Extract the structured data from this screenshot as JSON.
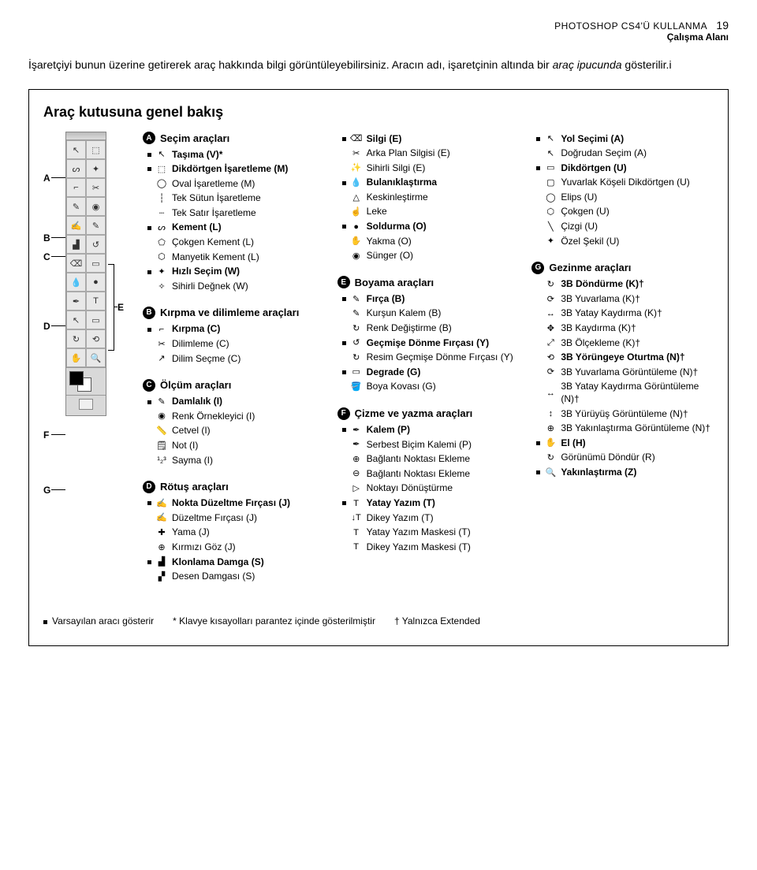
{
  "header": {
    "doc_title": "PHOTOSHOP CS4'Ü KULLANMA",
    "page_number": "19",
    "subtitle": "Çalışma Alanı"
  },
  "intro": {
    "line1_a": "İşaretçiyi bunun üzerine getirerek araç hakkında bilgi görüntüleyebilirsiniz. Aracın adı, işaretçinin altında bir ",
    "line1_ital": "araç ipucunda",
    "line1_b": " gösterilir.i"
  },
  "overview_title": "Araç kutusuna genel bakış",
  "labels": {
    "A": "A",
    "B": "B",
    "C": "C",
    "D": "D",
    "E": "E",
    "F": "F",
    "G": "G"
  },
  "sections": {
    "A": {
      "title": "Seçim araçları",
      "items": [
        {
          "b": true,
          "d": true,
          "icon": "↖",
          "name": "Taşıma (V)*"
        },
        {
          "b": true,
          "d": true,
          "icon": "⬚",
          "name": "Dikdörtgen İşaretleme (M)"
        },
        {
          "b": false,
          "d": false,
          "icon": "◯",
          "name": "Oval İşaretleme (M)"
        },
        {
          "b": false,
          "d": false,
          "icon": "┆",
          "name": "Tek Sütun İşaretleme"
        },
        {
          "b": false,
          "d": false,
          "icon": "┄",
          "name": "Tek Satır İşaretleme"
        },
        {
          "b": true,
          "d": true,
          "icon": "ᔕ",
          "name": "Kement (L)"
        },
        {
          "b": false,
          "d": false,
          "icon": "⬠",
          "name": "Çokgen Kement (L)"
        },
        {
          "b": false,
          "d": false,
          "icon": "⬡",
          "name": "Manyetik Kement (L)"
        },
        {
          "b": true,
          "d": true,
          "icon": "✦",
          "name": "Hızlı Seçim (W)"
        },
        {
          "b": false,
          "d": false,
          "icon": "✧",
          "name": "Sihirli Değnek (W)"
        }
      ]
    },
    "B": {
      "title": "Kırpma ve dilimleme araçları",
      "items": [
        {
          "b": true,
          "d": true,
          "icon": "⌐",
          "name": "Kırpma (C)"
        },
        {
          "b": false,
          "d": false,
          "icon": "✂",
          "name": "Dilimleme (C)"
        },
        {
          "b": false,
          "d": false,
          "icon": "↗",
          "name": "Dilim Seçme (C)"
        }
      ]
    },
    "C": {
      "title": "Ölçüm araçları",
      "items": [
        {
          "b": true,
          "d": true,
          "icon": "✎",
          "name": "Damlalık (I)"
        },
        {
          "b": false,
          "d": false,
          "icon": "◉",
          "name": "Renk Örnekleyici (I)"
        },
        {
          "b": false,
          "d": false,
          "icon": "📏",
          "name": "Cetvel (I)"
        },
        {
          "b": false,
          "d": false,
          "icon": "🗒",
          "name": "Not (I)"
        },
        {
          "b": false,
          "d": false,
          "icon": "¹₂³",
          "name": "Sayma (I)"
        }
      ]
    },
    "D": {
      "title": "Rötuş araçları",
      "items": [
        {
          "b": true,
          "d": true,
          "icon": "✍",
          "name": "Nokta Düzeltme Fırçası (J)"
        },
        {
          "b": false,
          "d": false,
          "icon": "✍",
          "name": "Düzeltme Fırçası (J)"
        },
        {
          "b": false,
          "d": false,
          "icon": "✚",
          "name": "Yama (J)"
        },
        {
          "b": false,
          "d": false,
          "icon": "⊕",
          "name": "Kırmızı Göz (J)"
        },
        {
          "b": true,
          "d": true,
          "icon": "▟",
          "name": "Klonlama Damga (S)"
        },
        {
          "b": false,
          "d": false,
          "icon": "▞",
          "name": "Desen Damgası (S)"
        }
      ]
    },
    "D2": {
      "items": [
        {
          "b": true,
          "d": true,
          "icon": "⌫",
          "name": "Silgi (E)"
        },
        {
          "b": false,
          "d": false,
          "icon": "✂",
          "name": "Arka Plan Silgisi (E)"
        },
        {
          "b": false,
          "d": false,
          "icon": "✨",
          "name": "Sihirli Silgi (E)"
        },
        {
          "b": true,
          "d": true,
          "icon": "💧",
          "name": "Bulanıklaştırma"
        },
        {
          "b": false,
          "d": false,
          "icon": "△",
          "name": "Keskinleştirme"
        },
        {
          "b": false,
          "d": false,
          "icon": "☝",
          "name": "Leke"
        },
        {
          "b": true,
          "d": true,
          "icon": "●",
          "name": "Soldurma (O)"
        },
        {
          "b": false,
          "d": false,
          "icon": "✋",
          "name": "Yakma (O)"
        },
        {
          "b": false,
          "d": false,
          "icon": "◉",
          "name": "Sünger (O)"
        }
      ]
    },
    "E": {
      "title": "Boyama araçları",
      "items": [
        {
          "b": true,
          "d": true,
          "icon": "✎",
          "name": "Fırça (B)"
        },
        {
          "b": false,
          "d": false,
          "icon": "✎",
          "name": "Kurşun Kalem (B)"
        },
        {
          "b": false,
          "d": false,
          "icon": "↻",
          "name": "Renk Değiştirme (B)"
        },
        {
          "b": true,
          "d": true,
          "icon": "↺",
          "name": "Geçmişe Dönme Fırçası (Y)"
        },
        {
          "b": false,
          "d": false,
          "icon": "↻",
          "name": "Resim Geçmişe Dönme Fırçası (Y)"
        },
        {
          "b": true,
          "d": true,
          "icon": "▭",
          "name": "Degrade (G)"
        },
        {
          "b": false,
          "d": false,
          "icon": "🪣",
          "name": "Boya Kovası (G)"
        }
      ]
    },
    "F": {
      "title": "Çizme ve yazma araçları",
      "items": [
        {
          "b": true,
          "d": true,
          "icon": "✒",
          "name": "Kalem (P)"
        },
        {
          "b": false,
          "d": false,
          "icon": "✒",
          "name": "Serbest Biçim Kalemi (P)"
        },
        {
          "b": false,
          "d": false,
          "icon": "⊕",
          "name": "Bağlantı Noktası Ekleme"
        },
        {
          "b": false,
          "d": false,
          "icon": "⊖",
          "name": "Bağlantı Noktası Ekleme"
        },
        {
          "b": false,
          "d": false,
          "icon": "▷",
          "name": "Noktayı Dönüştürme"
        },
        {
          "b": true,
          "d": true,
          "icon": "T",
          "name": "Yatay Yazım (T)"
        },
        {
          "b": false,
          "d": false,
          "icon": "↓T",
          "name": "Dikey Yazım (T)"
        },
        {
          "b": false,
          "d": false,
          "icon": "T",
          "name": "Yatay Yazım Maskesi (T)"
        },
        {
          "b": false,
          "d": false,
          "icon": "T",
          "name": "Dikey Yazım Maskesi (T)"
        }
      ]
    },
    "F2": {
      "items": [
        {
          "b": true,
          "d": true,
          "icon": "↖",
          "name": "Yol Seçimi (A)"
        },
        {
          "b": false,
          "d": false,
          "icon": "↖",
          "name": "Doğrudan Seçim (A)"
        },
        {
          "b": true,
          "d": true,
          "icon": "▭",
          "name": "Dikdörtgen (U)"
        },
        {
          "b": false,
          "d": false,
          "icon": "▢",
          "name": "Yuvarlak Köşeli Dikdörtgen (U)"
        },
        {
          "b": false,
          "d": false,
          "icon": "◯",
          "name": "Elips (U)"
        },
        {
          "b": false,
          "d": false,
          "icon": "⬡",
          "name": "Çokgen (U)"
        },
        {
          "b": false,
          "d": false,
          "icon": "╲",
          "name": "Çizgi (U)"
        },
        {
          "b": false,
          "d": false,
          "icon": "✦",
          "name": "Özel Şekil (U)"
        }
      ]
    },
    "G": {
      "title": "Gezinme araçları",
      "items": [
        {
          "b": true,
          "d": false,
          "icon": "↻",
          "name": "3B Döndürme (K)†"
        },
        {
          "b": false,
          "d": false,
          "icon": "⟳",
          "name": "3B Yuvarlama (K)†"
        },
        {
          "b": false,
          "d": false,
          "icon": "↔",
          "name": "3B Yatay Kaydırma (K)†"
        },
        {
          "b": false,
          "d": false,
          "icon": "✥",
          "name": "3B Kaydırma (K)†"
        },
        {
          "b": false,
          "d": false,
          "icon": "⤢",
          "name": "3B Ölçekleme (K)†"
        },
        {
          "b": true,
          "d": false,
          "icon": "⟲",
          "name": "3B Yörüngeye Oturtma (N)†"
        },
        {
          "b": false,
          "d": false,
          "icon": "⟳",
          "name": "3B Yuvarlama Görüntüleme (N)†"
        },
        {
          "b": false,
          "d": false,
          "icon": "↔",
          "name": "3B Yatay Kaydırma Görüntüleme (N)†"
        },
        {
          "b": false,
          "d": false,
          "icon": "↕",
          "name": "3B Yürüyüş Görüntüleme (N)†"
        },
        {
          "b": false,
          "d": false,
          "icon": "⊕",
          "name": "3B Yakınlaştırma Görüntüleme (N)†"
        },
        {
          "b": true,
          "d": true,
          "icon": "✋",
          "name": "El (H)"
        },
        {
          "b": false,
          "d": false,
          "icon": "↻",
          "name": "Görünümü Döndür (R)"
        },
        {
          "b": true,
          "d": true,
          "icon": "🔍",
          "name": "Yakınlaştırma (Z)"
        }
      ]
    }
  },
  "footer": {
    "note1": "Varsayılan aracı gösterir",
    "note2": "* Klavye kısayolları parantez içinde gösterilmiştir",
    "note3": "† Yalnızca Extended"
  }
}
